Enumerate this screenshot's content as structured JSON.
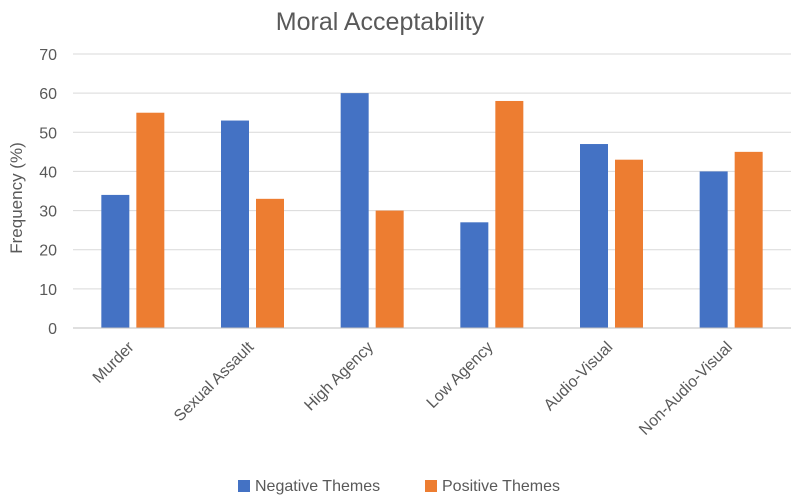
{
  "chart_data": {
    "type": "bar",
    "title": "Moral Acceptability",
    "ylabel": "Frequency (%)",
    "xlabel": "",
    "ylim": [
      0,
      70
    ],
    "yticks": [
      0,
      10,
      20,
      30,
      40,
      50,
      60,
      70
    ],
    "grid": true,
    "legend_position": "bottom",
    "categories": [
      "Murder",
      "Sexual Assault",
      "High Agency",
      "Low Agency",
      "Audio-Visual",
      "Non-Audio-Visual"
    ],
    "series": [
      {
        "name": "Negative Themes",
        "color": "#4472c4",
        "values": [
          34,
          53,
          60,
          27,
          47,
          40
        ]
      },
      {
        "name": "Positive Themes",
        "color": "#ed7d31",
        "values": [
          55,
          33,
          30,
          58,
          43,
          45
        ]
      }
    ]
  }
}
